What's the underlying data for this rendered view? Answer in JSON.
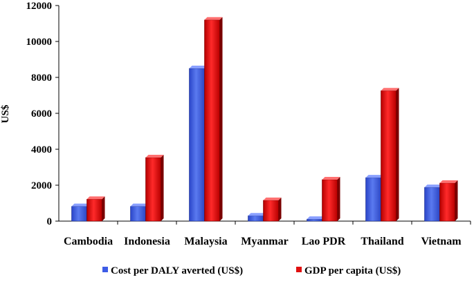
{
  "chart_data": {
    "type": "bar",
    "title": "",
    "xlabel": "",
    "ylabel": "US$",
    "ylim": [
      0,
      12000
    ],
    "yticks": [
      0,
      2000,
      4000,
      6000,
      8000,
      10000,
      12000
    ],
    "grid": false,
    "legend_position": "bottom",
    "categories": [
      "Cambodia",
      "Indonesia",
      "Malaysia",
      "Myanmar",
      "Lao PDR",
      "Thailand",
      "Vietnam"
    ],
    "series": [
      {
        "name": "Cost per DALY averted (US$)",
        "color": "#3d5ce6",
        "values": [
          820,
          820,
          8500,
          300,
          110,
          2420,
          1880
        ]
      },
      {
        "name": "GDP per capita (US$)",
        "color": "#e01010",
        "values": [
          1220,
          3540,
          11200,
          1160,
          2310,
          7260,
          2120
        ]
      }
    ]
  }
}
